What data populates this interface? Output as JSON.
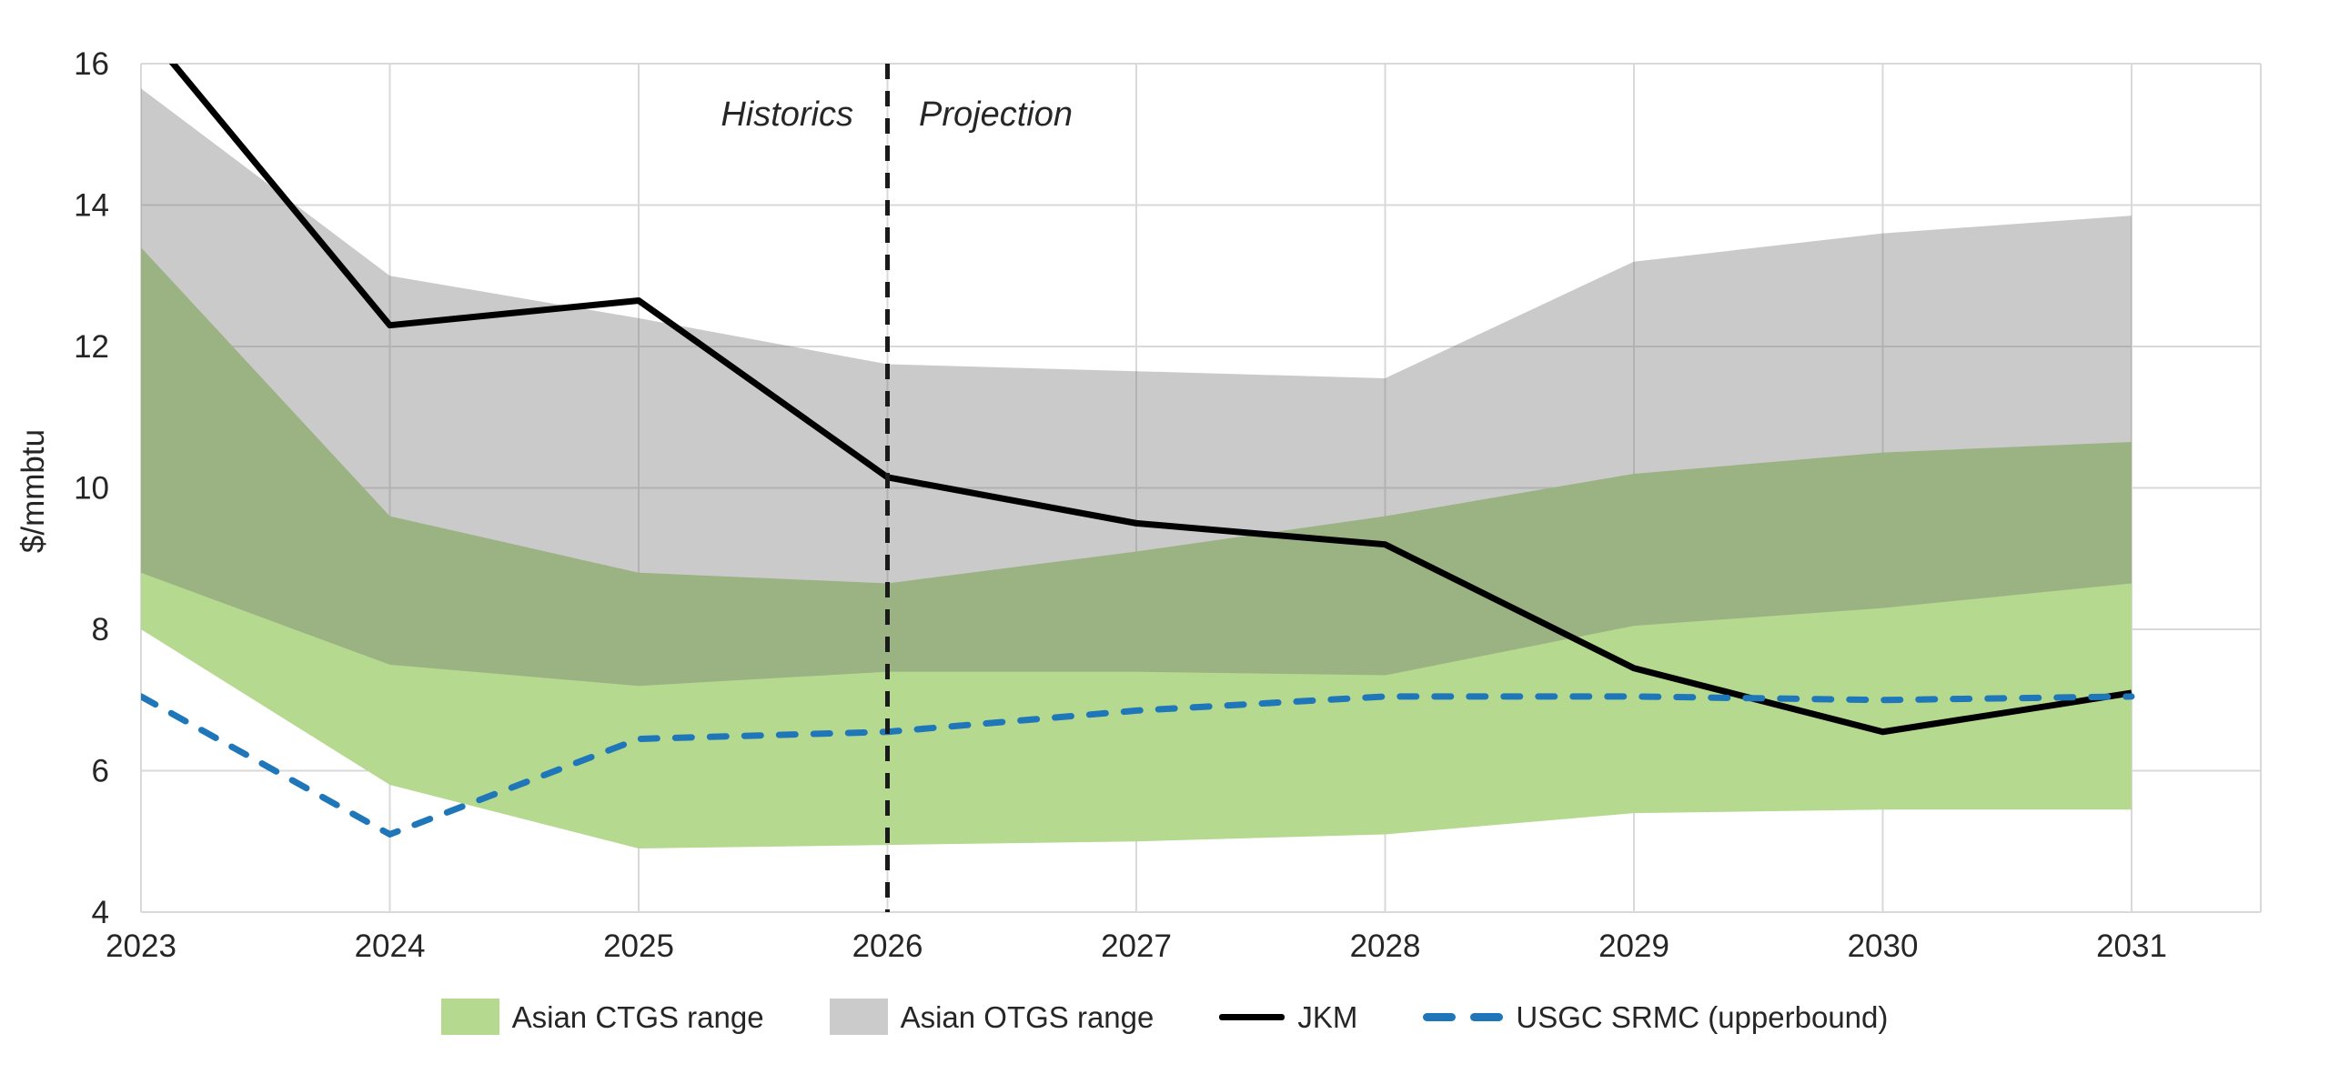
{
  "chart_data": {
    "type": "area",
    "title": "",
    "xlabel": "",
    "ylabel": "$/mmbtu",
    "categories": [
      "2023",
      "2024",
      "2025",
      "2026",
      "2027",
      "2028",
      "2029",
      "2030",
      "2031"
    ],
    "ylim": [
      4,
      16
    ],
    "yticks": [
      4,
      6,
      8,
      10,
      12,
      14,
      16
    ],
    "grid": "both",
    "gridline_color": "#d9d9d9",
    "text_color": "#262626",
    "legend_position": "bottom",
    "series": [
      {
        "name": "Asian CTGS range",
        "kind": "band",
        "fill": "#b5d98f",
        "legend_color": "#b5d98f",
        "max": [
          13.4,
          9.6,
          8.8,
          8.65,
          9.1,
          9.6,
          10.2,
          10.5,
          10.65
        ],
        "min": [
          8.0,
          5.8,
          4.9,
          4.95,
          5.0,
          5.1,
          5.4,
          5.45,
          5.45
        ]
      },
      {
        "name": "Asian OTGS range",
        "kind": "band",
        "fill": "rgba(110,110,110,0.37)",
        "legend_color": "#cbcbcb",
        "max": [
          15.65,
          13.0,
          12.4,
          11.75,
          11.65,
          11.55,
          13.2,
          13.6,
          13.85
        ],
        "min": [
          8.8,
          7.5,
          7.2,
          7.4,
          7.4,
          7.35,
          8.05,
          8.3,
          8.65
        ]
      },
      {
        "name": "JKM",
        "kind": "line",
        "color": "#000000",
        "values": [
          16.55,
          12.3,
          12.65,
          10.15,
          9.5,
          9.2,
          7.45,
          6.55,
          7.1
        ]
      },
      {
        "name": "USGC SRMC (upperbound)",
        "kind": "dashed-line",
        "color": "#1f76b8",
        "values": [
          7.05,
          5.1,
          6.45,
          6.55,
          6.85,
          7.05,
          7.05,
          7.0,
          7.05
        ]
      }
    ],
    "annotations": {
      "historics": "Historics",
      "projection": "Projection",
      "divider_year": "2026"
    }
  }
}
